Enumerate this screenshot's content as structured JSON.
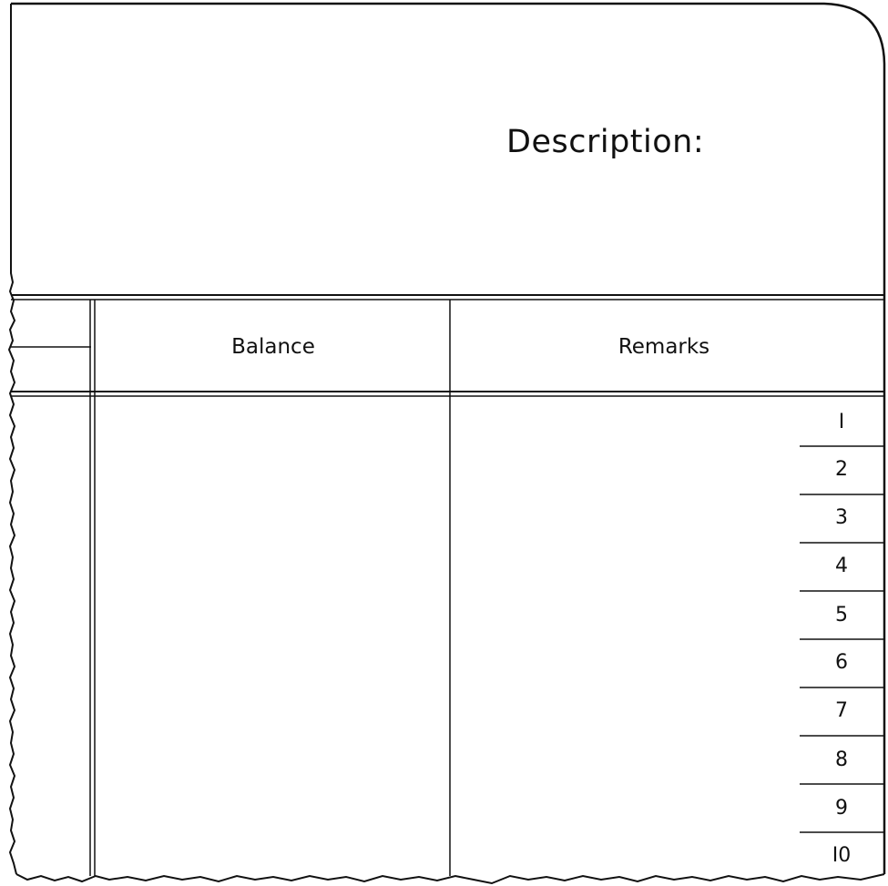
{
  "form": {
    "description_label": "Description:",
    "columns": {
      "balance": "Balance",
      "remarks": "Remarks"
    },
    "row_numbers": [
      "I",
      "2",
      "3",
      "4",
      "5",
      "6",
      "7",
      "8",
      "9",
      "I0"
    ]
  }
}
